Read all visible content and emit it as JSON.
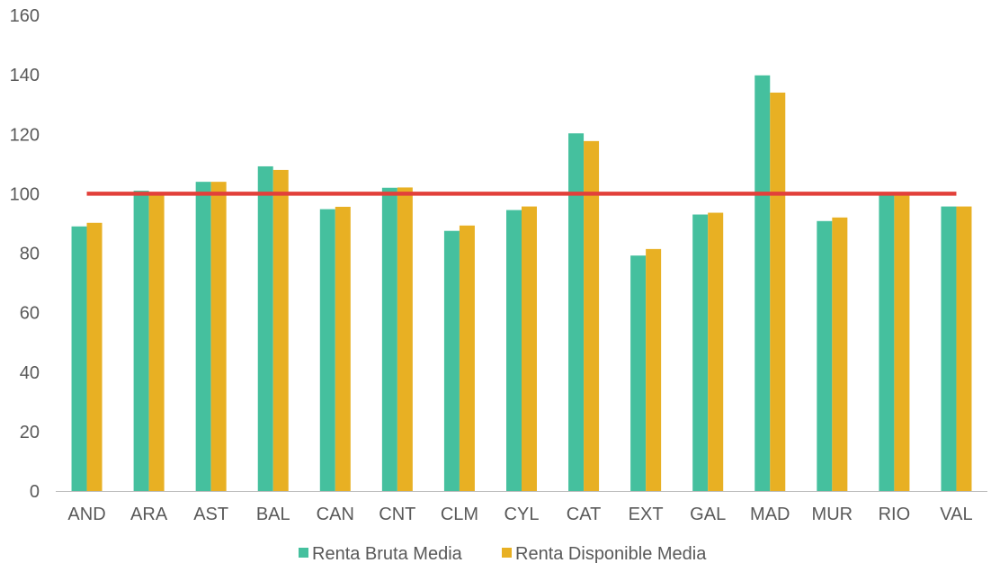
{
  "chart_data": {
    "type": "bar",
    "categories": [
      "AND",
      "ARA",
      "AST",
      "BAL",
      "CAN",
      "CNT",
      "CLM",
      "CYL",
      "CAT",
      "EXT",
      "GAL",
      "MAD",
      "MUR",
      "RIO",
      "VAL"
    ],
    "series": [
      {
        "name": "Renta Bruta Media",
        "color": "#45C09E",
        "values": [
          89,
          101,
          104,
          109.2,
          94.8,
          102,
          87.5,
          94.5,
          120.3,
          79.2,
          93,
          139.8,
          90.8,
          100,
          95.7
        ]
      },
      {
        "name": "Renta Disponible Media",
        "color": "#E8B023",
        "values": [
          90.2,
          100.5,
          104,
          108,
          95.6,
          102.1,
          89.3,
          95.7,
          117.7,
          81.4,
          93.6,
          134,
          92,
          100.1,
          95.7
        ]
      }
    ],
    "reference_line": {
      "value": 100,
      "color": "#E2403A"
    },
    "ylim": [
      0,
      160
    ],
    "yticks": [
      "0",
      "20",
      "40",
      "60",
      "80",
      "100",
      "120",
      "140",
      "160"
    ],
    "grid": false,
    "legend_position": "bottom",
    "title": "",
    "xlabel": "",
    "ylabel": ""
  }
}
